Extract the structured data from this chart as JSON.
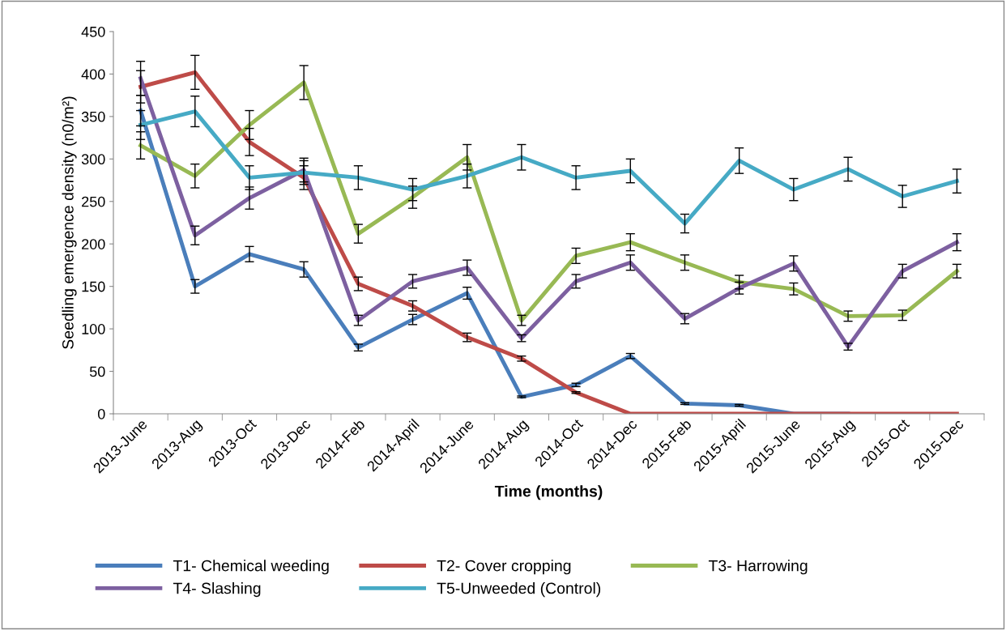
{
  "chart_data": {
    "type": "line",
    "xlabel": "Time (months)",
    "ylabel": "Seedling emergence density (n0/m²)",
    "categories": [
      "2013-June",
      "2013-Aug",
      "2013-Oct",
      "2013-Dec",
      "2014-Feb",
      "2014-April",
      "2014-June",
      "2014-Aug",
      "2014-Oct",
      "2014-Dec",
      "2015-Feb",
      "2015-April",
      "2015-June",
      "2015-Aug",
      "2015-Oct",
      "2015-Dec"
    ],
    "ylim": [
      0,
      450
    ],
    "yticks": [
      0,
      50,
      100,
      150,
      200,
      250,
      300,
      350,
      400,
      450
    ],
    "grid": false,
    "legend": "bottom",
    "marker": "none",
    "line_style": "solid",
    "series": [
      {
        "name": "T1- Chemical weeding",
        "color": "#4a7ebb",
        "values": [
          357,
          150,
          188,
          170,
          78,
          111,
          142,
          20,
          34,
          68,
          12,
          10,
          0,
          0,
          null,
          null
        ],
        "errors": [
          18,
          8,
          9,
          9,
          4,
          6,
          7,
          1,
          2,
          3,
          1,
          1,
          null,
          null,
          null,
          null
        ]
      },
      {
        "name": "T2- Cover cropping",
        "color": "#be4b48",
        "values": [
          385,
          402,
          320,
          278,
          153,
          127,
          90,
          65,
          25,
          0,
          0,
          0,
          0,
          0,
          0,
          0
        ],
        "errors": [
          19,
          20,
          16,
          14,
          8,
          6,
          5,
          3,
          1,
          null,
          null,
          null,
          null,
          null,
          null,
          null
        ]
      },
      {
        "name": "T3- Harrowing",
        "color": "#98b954",
        "values": [
          316,
          280,
          340,
          390,
          212,
          255,
          302,
          110,
          186,
          202,
          178,
          155,
          147,
          115,
          116,
          168
        ],
        "errors": [
          16,
          14,
          17,
          20,
          11,
          13,
          15,
          6,
          9,
          10,
          9,
          8,
          7,
          6,
          6,
          8
        ]
      },
      {
        "name": "T4- Slashing",
        "color": "#7d60a0",
        "values": [
          395,
          210,
          254,
          287,
          110,
          156,
          172,
          89,
          156,
          178,
          112,
          148,
          177,
          79,
          168,
          202
        ],
        "errors": [
          20,
          11,
          13,
          14,
          6,
          8,
          9,
          4,
          8,
          9,
          6,
          7,
          9,
          4,
          8,
          10
        ]
      },
      {
        "name": "T5-Unweeded (Control)",
        "color": "#46aac5",
        "values": [
          340,
          356,
          278,
          284,
          278,
          264,
          280,
          302,
          278,
          286,
          224,
          298,
          264,
          288,
          256,
          274
        ],
        "errors": [
          17,
          18,
          14,
          14,
          14,
          13,
          14,
          15,
          14,
          14,
          11,
          15,
          13,
          14,
          13,
          14
        ]
      }
    ]
  }
}
